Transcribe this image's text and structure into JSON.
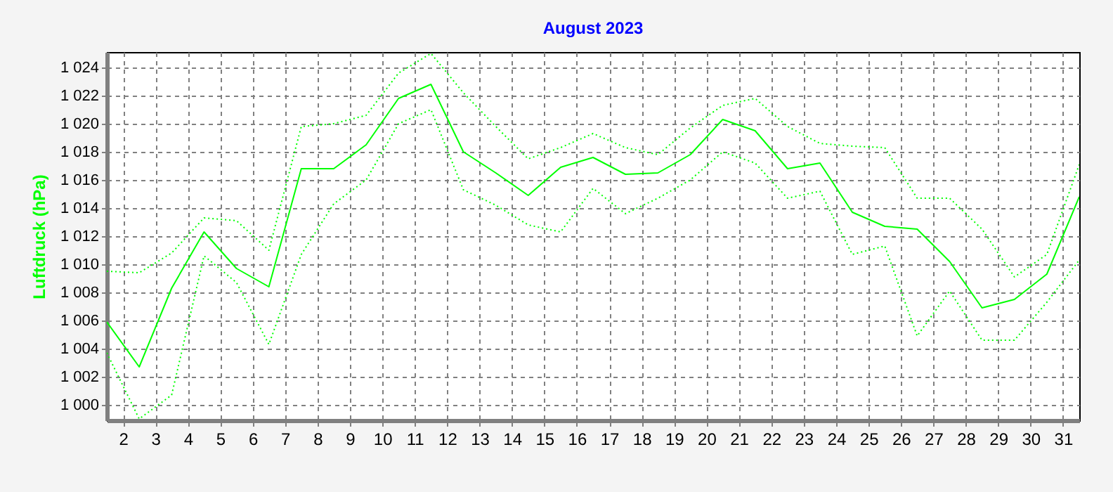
{
  "chart_data": {
    "type": "line",
    "title": "August 2023",
    "ylabel": "Luftdruck (hPa)",
    "x": [
      1.5,
      2.5,
      3.5,
      4.5,
      5.5,
      6.5,
      7.5,
      8.5,
      9.5,
      10.5,
      11.5,
      12.5,
      13.5,
      14.5,
      15.5,
      16.5,
      17.5,
      18.5,
      19.5,
      20.5,
      21.5,
      22.5,
      23.5,
      24.5,
      25.5,
      26.5,
      27.5,
      28.5,
      29.5,
      30.5,
      31.5
    ],
    "xlim": [
      1.5,
      31.5
    ],
    "xticks": [
      2,
      3,
      4,
      5,
      6,
      7,
      8,
      9,
      10,
      11,
      12,
      13,
      14,
      15,
      16,
      17,
      18,
      19,
      20,
      21,
      22,
      23,
      24,
      25,
      26,
      27,
      28,
      29,
      30,
      31
    ],
    "ylim": [
      998.9,
      1025.1
    ],
    "yticks": [
      {
        "value": 1000,
        "label": "1 000"
      },
      {
        "value": 1002,
        "label": "1 002"
      },
      {
        "value": 1004,
        "label": "1 004"
      },
      {
        "value": 1006,
        "label": "1 006"
      },
      {
        "value": 1008,
        "label": "1 008"
      },
      {
        "value": 1010,
        "label": "1 010"
      },
      {
        "value": 1012,
        "label": "1 012"
      },
      {
        "value": 1014,
        "label": "1 014"
      },
      {
        "value": 1016,
        "label": "1 016"
      },
      {
        "value": 1018,
        "label": "1 018"
      },
      {
        "value": 1020,
        "label": "1 020"
      },
      {
        "value": 1022,
        "label": "1 022"
      },
      {
        "value": 1024,
        "label": "1 024"
      }
    ],
    "grid": true,
    "series": [
      {
        "color": "#00ff00",
        "line_style": "dotted",
        "values": [
          1009.5,
          1009.4,
          1010.8,
          1013.3,
          1013.1,
          1011.0,
          1019.8,
          1020.0,
          1020.6,
          1023.6,
          1025.0,
          1022.2,
          1019.8,
          1017.5,
          1018.3,
          1019.3,
          1018.3,
          1017.8,
          1019.7,
          1021.3,
          1021.8,
          1019.8,
          1018.6,
          1018.4,
          1018.3,
          1014.7,
          1014.7,
          1012.5,
          1009.1,
          1010.7,
          1017.1
        ]
      },
      {
        "color": "#00ff00",
        "line_style": "solid",
        "values": [
          1005.9,
          1002.7,
          1008.3,
          1012.3,
          1009.7,
          1008.4,
          1016.8,
          1016.8,
          1018.5,
          1021.8,
          1022.8,
          1018.0,
          1016.5,
          1014.9,
          1016.9,
          1017.6,
          1016.4,
          1016.5,
          1017.8,
          1020.3,
          1019.5,
          1016.8,
          1017.2,
          1013.7,
          1012.7,
          1012.5,
          1010.2,
          1006.9,
          1007.5,
          1009.3,
          1014.8
        ]
      },
      {
        "color": "#00ff00",
        "line_style": "dotted",
        "values": [
          1003.7,
          999.0,
          1000.7,
          1010.6,
          1008.7,
          1004.3,
          1010.7,
          1014.3,
          1016.0,
          1020.0,
          1021.0,
          1015.3,
          1014.2,
          1012.8,
          1012.3,
          1015.4,
          1013.6,
          1014.7,
          1016.0,
          1018.0,
          1017.2,
          1014.7,
          1015.2,
          1010.7,
          1011.3,
          1004.9,
          1008.1,
          1004.6,
          1004.6,
          1007.3,
          1010.3
        ]
      }
    ]
  }
}
